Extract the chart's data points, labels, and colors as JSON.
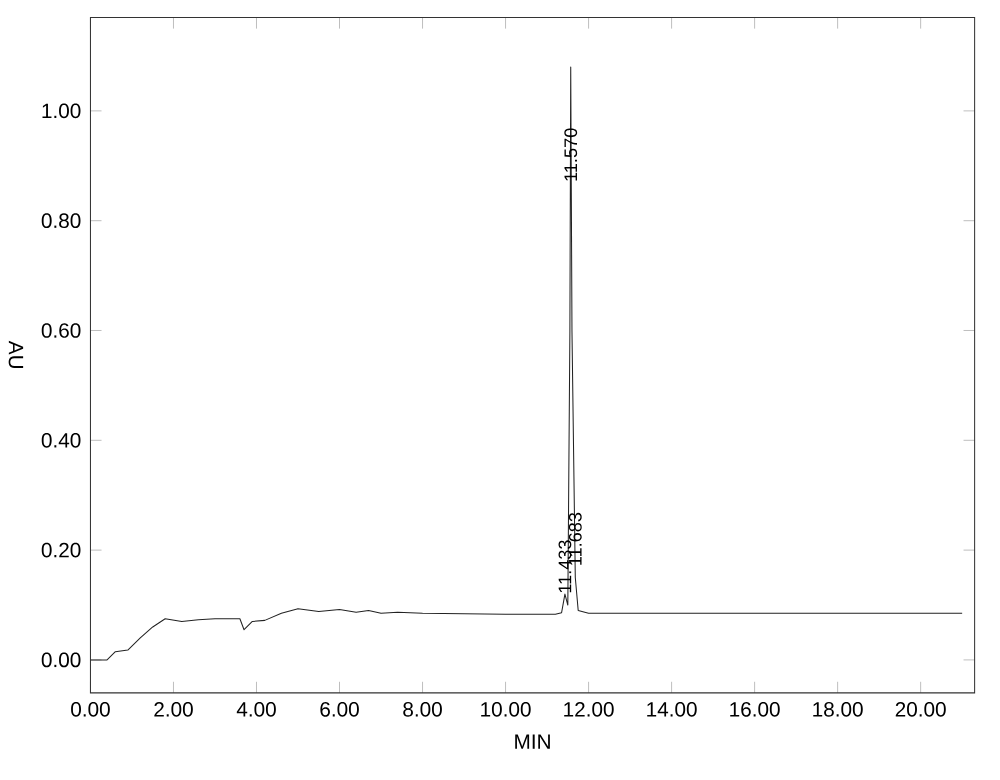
{
  "chart_data": {
    "type": "line",
    "xlabel": "MIN",
    "ylabel": "AU",
    "series": [
      {
        "color": "#222222",
        "x": [
          0,
          0.4,
          0.6,
          0.9,
          1.2,
          1.5,
          1.8,
          2.2,
          2.6,
          3.0,
          3.6,
          3.7,
          3.9,
          4.2,
          4.6,
          5.0,
          5.5,
          6.0,
          6.4,
          6.7,
          7.0,
          7.4,
          8.0,
          10.0,
          11.2,
          11.35,
          11.43,
          11.5,
          11.55,
          11.57,
          11.6,
          11.68,
          11.75,
          12.0,
          21.0
        ],
        "values": [
          0.0,
          0.0,
          0.015,
          0.018,
          0.04,
          0.06,
          0.075,
          0.07,
          0.073,
          0.075,
          0.075,
          0.055,
          0.07,
          0.072,
          0.085,
          0.093,
          0.088,
          0.092,
          0.087,
          0.09,
          0.085,
          0.087,
          0.085,
          0.083,
          0.083,
          0.086,
          0.12,
          0.1,
          0.6,
          1.08,
          0.6,
          0.15,
          0.09,
          0.085,
          0.085
        ]
      }
    ],
    "xlim": [
      0,
      21.3
    ],
    "ylim": [
      -0.06,
      1.17
    ],
    "xticks": [
      {
        "value": 0,
        "label": "0.00"
      },
      {
        "value": 2,
        "label": "2.00"
      },
      {
        "value": 4,
        "label": "4.00"
      },
      {
        "value": 6,
        "label": "6.00"
      },
      {
        "value": 8,
        "label": "8.00"
      },
      {
        "value": 10,
        "label": "10.00"
      },
      {
        "value": 12,
        "label": "12.00"
      },
      {
        "value": 14,
        "label": "14.00"
      },
      {
        "value": 16,
        "label": "16.00"
      },
      {
        "value": 18,
        "label": "18.00"
      },
      {
        "value": 20,
        "label": "20.00"
      }
    ],
    "yticks": [
      {
        "value": 0,
        "label": "0.00"
      },
      {
        "value": 0.2,
        "label": "0.20"
      },
      {
        "value": 0.4,
        "label": "0.40"
      },
      {
        "value": 0.6,
        "label": "0.60"
      },
      {
        "value": 0.8,
        "label": "0.80"
      },
      {
        "value": 1.0,
        "label": "1.00"
      }
    ],
    "annotations": [
      {
        "text": "11.570",
        "x": 11.57,
        "y": 0.92
      },
      {
        "text": "11.433",
        "x": 11.43,
        "y": 0.17
      },
      {
        "text": "11.683",
        "x": 11.68,
        "y": 0.22
      }
    ],
    "grid": false,
    "marker": "none",
    "line_style": "solid"
  }
}
